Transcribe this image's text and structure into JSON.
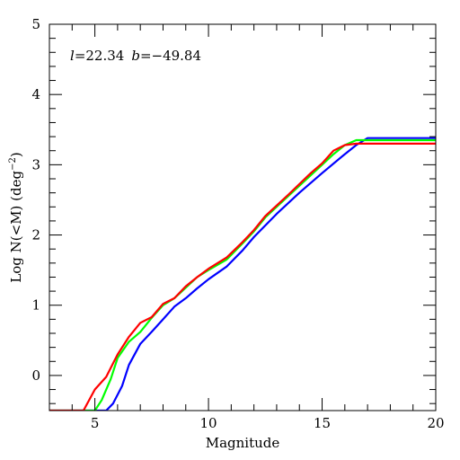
{
  "chart_data": {
    "type": "line",
    "title": "",
    "xlabel": "Magnitude",
    "ylabel": "Log N(<M) (deg",
    "ylabel_sup": "−2",
    "ylabel_close": ")",
    "xlim": [
      3,
      20
    ],
    "ylim": [
      -0.5,
      5
    ],
    "xticks": [
      5,
      10,
      15,
      20
    ],
    "yticks": [
      0,
      1,
      2,
      3,
      4,
      5
    ],
    "xtick_labels": [
      "5",
      "10",
      "15",
      "20"
    ],
    "ytick_labels": [
      "0",
      "1",
      "2",
      "3",
      "4",
      "5"
    ],
    "grid": false,
    "annotation": {
      "l_symbol": "l",
      "l_value": "=22.34",
      "b_symbol": "b",
      "b_value": "=−49.84"
    },
    "series": [
      {
        "color": "#0000ff",
        "x": [
          3.0,
          5.5,
          5.8,
          6.2,
          6.5,
          7.0,
          7.5,
          8.0,
          8.5,
          9.0,
          9.5,
          10.0,
          10.8,
          11.5,
          12.0,
          13.0,
          14.0,
          15.0,
          16.0,
          16.5,
          17.0,
          20.0
        ],
        "y": [
          -0.55,
          -0.55,
          -0.4,
          -0.15,
          0.15,
          0.45,
          0.62,
          0.8,
          0.98,
          1.1,
          1.24,
          1.37,
          1.55,
          1.78,
          1.97,
          2.3,
          2.6,
          2.88,
          3.15,
          3.28,
          3.38,
          3.38
        ]
      },
      {
        "color": "#00ff00",
        "x": [
          3.0,
          5.0,
          5.3,
          5.7,
          6.0,
          6.5,
          7.0,
          7.5,
          8.0,
          8.5,
          9.0,
          9.5,
          10.0,
          10.8,
          11.5,
          12.0,
          12.5,
          13.5,
          14.5,
          15.0,
          15.5,
          16.0,
          16.5,
          20.0
        ],
        "y": [
          -0.55,
          -0.55,
          -0.35,
          -0.05,
          0.25,
          0.48,
          0.62,
          0.82,
          1.0,
          1.1,
          1.25,
          1.4,
          1.5,
          1.65,
          1.88,
          2.05,
          2.25,
          2.55,
          2.85,
          3.0,
          3.15,
          3.28,
          3.35,
          3.35
        ]
      },
      {
        "color": "#ff0000",
        "x": [
          3.0,
          4.5,
          5.0,
          5.5,
          6.0,
          6.5,
          7.0,
          7.5,
          8.0,
          8.5,
          9.0,
          9.5,
          10.0,
          10.8,
          11.5,
          12.0,
          12.5,
          13.5,
          14.5,
          15.0,
          15.5,
          16.0,
          16.5,
          20.0
        ],
        "y": [
          -0.5,
          -0.5,
          -0.2,
          -0.02,
          0.3,
          0.55,
          0.75,
          0.83,
          1.02,
          1.1,
          1.27,
          1.4,
          1.52,
          1.68,
          1.9,
          2.07,
          2.27,
          2.57,
          2.88,
          3.02,
          3.2,
          3.28,
          3.3,
          3.3
        ]
      }
    ]
  }
}
